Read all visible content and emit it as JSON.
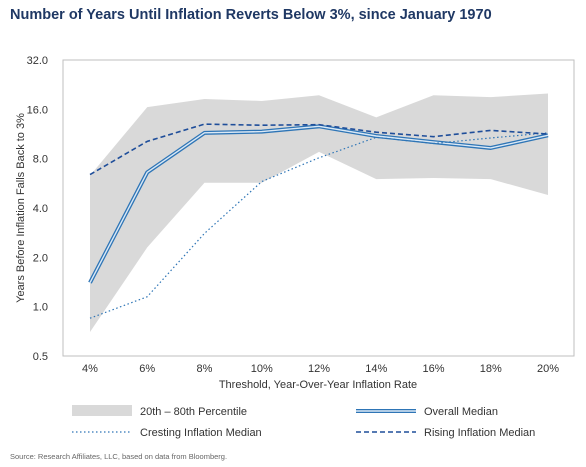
{
  "title": "Number of Years Until Inflation Reverts Below 3%, since January 1970",
  "source": "Source: Research Affiliates, LLC, based on data from Bloomberg.",
  "chart_data": {
    "type": "line",
    "title": "Number of Years Until Inflation Reverts Below 3%, since January 1970",
    "xlabel": "Threshold, Year-Over-Year Inflation Rate",
    "ylabel": "Years Before Inflation Falls Back to 3%",
    "y_scale": "log2",
    "ylim": [
      0.5,
      32
    ],
    "y_ticks": [
      "0.5",
      "1.0",
      "2.0",
      "4.0",
      "8.0",
      "16.0",
      "32.0"
    ],
    "y_tick_values": [
      0.5,
      1,
      2,
      4,
      8,
      16,
      32
    ],
    "categories": [
      "4%",
      "6%",
      "8%",
      "10%",
      "12%",
      "14%",
      "16%",
      "18%",
      "20%"
    ],
    "band": {
      "name": "20th – 80th Percentile",
      "color": "#d9d9d9",
      "upper": [
        6.3,
        16.5,
        18.5,
        18.0,
        19.5,
        14.3,
        19.5,
        19.0,
        20.0
      ],
      "lower": [
        0.7,
        2.3,
        5.7,
        5.7,
        8.8,
        6.0,
        6.1,
        6.0,
        4.8
      ]
    },
    "series": [
      {
        "name": "Overall Median",
        "style": "double",
        "color": "#2e75b6",
        "values": [
          1.4,
          6.6,
          11.5,
          11.7,
          12.6,
          11.0,
          10.1,
          9.3,
          11.1
        ]
      },
      {
        "name": "Cresting Inflation Median",
        "style": "dotted",
        "color": "#2e75b6",
        "values": [
          0.85,
          1.15,
          2.8,
          5.8,
          8.1,
          10.8,
          9.9,
          10.7,
          11.5
        ]
      },
      {
        "name": "Rising Inflation Median",
        "style": "dashed",
        "color": "#1f4e9a",
        "values": [
          6.4,
          10.2,
          13.0,
          12.8,
          12.9,
          11.6,
          10.9,
          11.9,
          11.3
        ]
      }
    ],
    "grid": false,
    "legend_position": "bottom"
  }
}
